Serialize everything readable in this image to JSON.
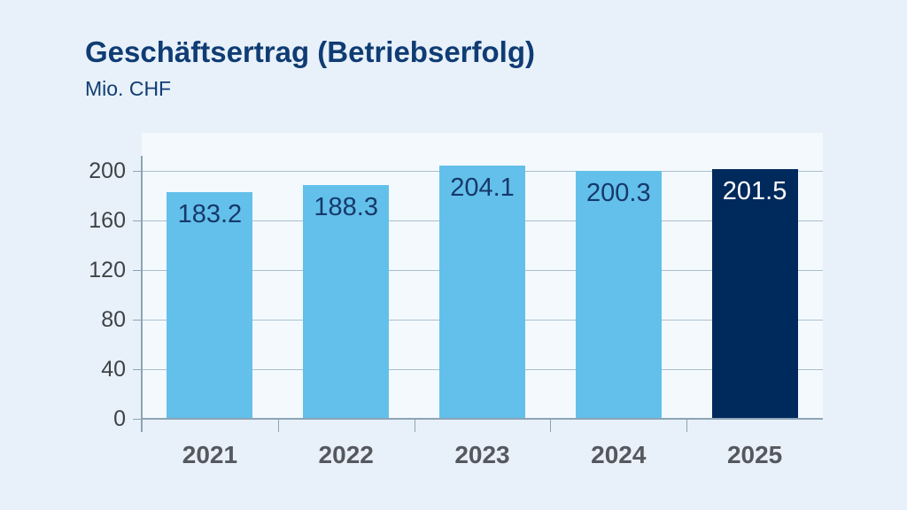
{
  "header": {
    "title": "Geschäftsertrag (Betriebserfolg)",
    "subtitle": "Mio. CHF"
  },
  "chart_data": {
    "type": "bar",
    "title": "Geschäftsertrag (Betriebserfolg)",
    "subtitle": "Mio. CHF",
    "unit": "Mio. CHF",
    "categories": [
      "2021",
      "2022",
      "2023",
      "2024",
      "2025"
    ],
    "values": [
      183.2,
      188.3,
      204.1,
      200.3,
      201.5
    ],
    "bar_labels": [
      "183.2",
      "188.3",
      "204.1",
      "200.3",
      "201.5"
    ],
    "highlight_index": 4,
    "yticks": [
      0,
      40,
      80,
      120,
      160,
      200
    ],
    "ylim": [
      0,
      212
    ],
    "grid": true,
    "legend": false,
    "colors": {
      "bar": "#63c0ea",
      "bar_highlight": "#002a5c",
      "value_label": "#16396b",
      "value_label_on_highlight": "#ffffff",
      "axis": "#8ca4b6",
      "grid": "#aabfcd",
      "tick_text": "#3f4347",
      "category_text": "#55585e",
      "title_text": "#103c74",
      "background": "#e8f1f9",
      "plot_background": "#f3f9fd"
    }
  }
}
